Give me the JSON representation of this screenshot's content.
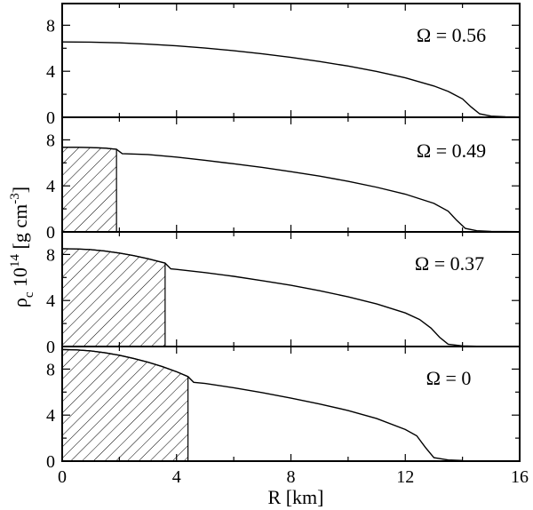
{
  "chart_data": {
    "type": "line",
    "xlabel": "R [km]",
    "ylabel": {
      "rho": "ρ",
      "sub": "c",
      "base": " 10",
      "exp": "14",
      "unit_open": " [g  cm",
      "unit_exp": "-3",
      "unit_close": "]"
    },
    "xlim": [
      0,
      16
    ],
    "ylim": [
      0,
      10
    ],
    "x_ticks": [
      "0",
      "4",
      "8",
      "12",
      "16"
    ],
    "y_ticks": [
      "0",
      "4",
      "8"
    ],
    "panels": [
      {
        "omega": "Ω = 0.56",
        "core_radius": null,
        "points": [
          [
            0,
            6.55
          ],
          [
            1,
            6.53
          ],
          [
            2,
            6.47
          ],
          [
            3,
            6.36
          ],
          [
            4,
            6.21
          ],
          [
            5,
            6.02
          ],
          [
            6,
            5.79
          ],
          [
            7,
            5.52
          ],
          [
            8,
            5.21
          ],
          [
            9,
            4.85
          ],
          [
            10,
            4.45
          ],
          [
            11,
            3.98
          ],
          [
            12,
            3.43
          ],
          [
            13,
            2.72
          ],
          [
            13.5,
            2.25
          ],
          [
            14,
            1.6
          ],
          [
            14.3,
            0.9
          ],
          [
            14.6,
            0.3
          ],
          [
            15,
            0.1
          ],
          [
            15.5,
            0.04
          ],
          [
            16,
            0.02
          ]
        ]
      },
      {
        "omega": "Ω = 0.49",
        "core_radius": 1.9,
        "points": [
          [
            0,
            7.35
          ],
          [
            0.5,
            7.35
          ],
          [
            1,
            7.33
          ],
          [
            1.5,
            7.28
          ],
          [
            1.9,
            7.18
          ],
          [
            2.1,
            6.8
          ],
          [
            3,
            6.72
          ],
          [
            4,
            6.5
          ],
          [
            5,
            6.22
          ],
          [
            6,
            5.92
          ],
          [
            7,
            5.6
          ],
          [
            8,
            5.24
          ],
          [
            9,
            4.85
          ],
          [
            10,
            4.4
          ],
          [
            11,
            3.88
          ],
          [
            12,
            3.28
          ],
          [
            13,
            2.48
          ],
          [
            13.5,
            1.8
          ],
          [
            13.8,
            1.0
          ],
          [
            14.1,
            0.3
          ],
          [
            14.5,
            0.1
          ],
          [
            15,
            0.04
          ],
          [
            16,
            0.02
          ]
        ]
      },
      {
        "omega": "Ω = 0.37",
        "core_radius": 3.6,
        "points": [
          [
            0,
            8.5
          ],
          [
            0.5,
            8.48
          ],
          [
            1,
            8.42
          ],
          [
            1.5,
            8.3
          ],
          [
            2,
            8.12
          ],
          [
            2.5,
            7.9
          ],
          [
            3,
            7.63
          ],
          [
            3.6,
            7.25
          ],
          [
            3.8,
            6.75
          ],
          [
            4,
            6.7
          ],
          [
            5,
            6.42
          ],
          [
            6,
            6.1
          ],
          [
            7,
            5.72
          ],
          [
            8,
            5.32
          ],
          [
            9,
            4.85
          ],
          [
            10,
            4.32
          ],
          [
            11,
            3.7
          ],
          [
            12,
            2.92
          ],
          [
            12.5,
            2.35
          ],
          [
            12.9,
            1.6
          ],
          [
            13.2,
            0.8
          ],
          [
            13.5,
            0.2
          ],
          [
            14,
            0.05
          ],
          [
            14.5,
            0.02
          ]
        ]
      },
      {
        "omega": "Ω = 0",
        "core_radius": 4.4,
        "points": [
          [
            0,
            9.7
          ],
          [
            0.5,
            9.67
          ],
          [
            1,
            9.58
          ],
          [
            1.5,
            9.42
          ],
          [
            2,
            9.2
          ],
          [
            2.5,
            8.92
          ],
          [
            3,
            8.6
          ],
          [
            3.5,
            8.22
          ],
          [
            4,
            7.77
          ],
          [
            4.4,
            7.35
          ],
          [
            4.6,
            6.85
          ],
          [
            5,
            6.75
          ],
          [
            6,
            6.38
          ],
          [
            7,
            5.95
          ],
          [
            8,
            5.48
          ],
          [
            9,
            4.97
          ],
          [
            10,
            4.4
          ],
          [
            11,
            3.7
          ],
          [
            12,
            2.75
          ],
          [
            12.4,
            2.2
          ],
          [
            12.7,
            1.2
          ],
          [
            13,
            0.3
          ],
          [
            13.5,
            0.1
          ],
          [
            14,
            0.05
          ]
        ]
      }
    ]
  }
}
